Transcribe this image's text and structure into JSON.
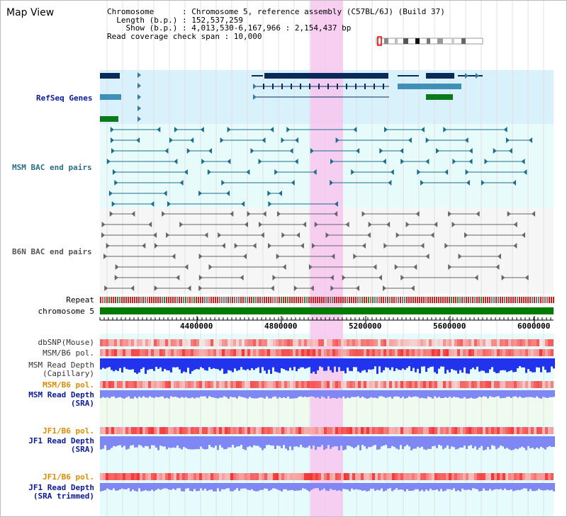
{
  "app": {
    "title": "Map View"
  },
  "header": {
    "line1": "Chromosome      : Chromosome 5, reference assembly (C57BL/6J) (Build 37)",
    "line2": "  Length (b.p.) : 152,537,259",
    "line3": "    Show (b.p.) : 4,013,530-6,167,966 : 2,154,437 bp",
    "line4": "Read coverage check span : 10,000"
  },
  "tracks": {
    "refseq": "RefSeq Genes",
    "msm_bac": "MSM BAC end pairs",
    "b6n_bac": "B6N BAC end pairs",
    "repeat": "Repeat",
    "chromosome": "chromosome 5",
    "dbsnp": "dbSNP(Mouse)",
    "msm_b6_pol": "MSM/B6 pol.",
    "msm_depth_cap_1": "MSM Read Depth",
    "msm_depth_cap_2": "(Capillary)",
    "msm_b6_pol2": "MSM/B6 pol.",
    "msm_depth_sra_1": "MSM Read Depth",
    "msm_depth_sra_2": "(SRA)",
    "jf1_b6_pol": "JF1/B6 pol.",
    "jf1_depth_sra_1": "JF1 Read Depth",
    "jf1_depth_sra_2": "(SRA)",
    "jf1_b6_pol2": "JF1/B6 pol.",
    "jf1_depth_trim_1": "JF1 Read Depth",
    "jf1_depth_trim_2": "(SRA trimmed)"
  },
  "ruler": {
    "ticks": [
      "4400000",
      "4800000",
      "5200000",
      "5600000",
      "6000000"
    ]
  },
  "colors": {
    "refseq_bg": "#d8f1fb",
    "bac_bg": "#e8fbfb",
    "b6n_bg": "#f6f6f6",
    "highlight": "#f7c6ee",
    "chromosome": "#007a00",
    "gene_dark": "#0a2a5a",
    "gene_blue": "#3f8fb6",
    "gene_green": "#0a7a1a",
    "bac_teal": "#1c6f8a",
    "bac_gray": "#666666",
    "depth_blue": "#2233ee",
    "depth_light": "#7f87f5",
    "pol_red": "#ee2222",
    "label_orange": "#e08a00",
    "label_navy": "#0a1a9a"
  }
}
